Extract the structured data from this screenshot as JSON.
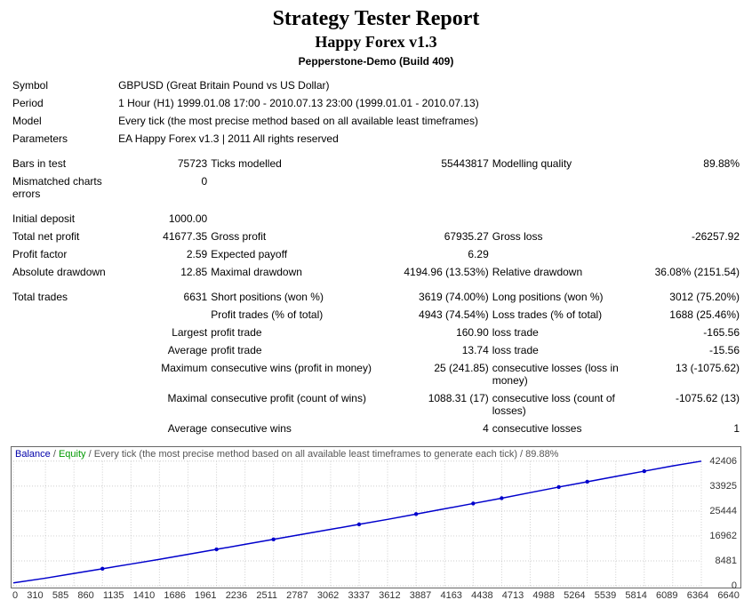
{
  "header": {
    "title": "Strategy Tester Report",
    "subtitle": "Happy Forex v1.3",
    "server": "Pepperstone-Demo (Build 409)"
  },
  "meta": {
    "symbol_label": "Symbol",
    "symbol_value": "GBPUSD (Great Britain Pound vs US Dollar)",
    "period_label": "Period",
    "period_value": "1 Hour (H1) 1999.01.08 17:00 - 2010.07.13 23:00 (1999.01.01 - 2010.07.13)",
    "model_label": "Model",
    "model_value": "Every tick (the most precise method based on all available least timeframes)",
    "parameters_label": "Parameters",
    "parameters_value": "EA Happy Forex v1.3 | 2011 All rights reserved"
  },
  "stats": {
    "bars_in_test_label": "Bars in test",
    "bars_in_test": "75723",
    "ticks_modelled_label": "Ticks modelled",
    "ticks_modelled": "55443817",
    "modelling_quality_label": "Modelling quality",
    "modelling_quality": "89.88%",
    "mismatched_label": "Mismatched charts errors",
    "mismatched": "0",
    "initial_deposit_label": "Initial deposit",
    "initial_deposit": "1000.00",
    "total_net_profit_label": "Total net profit",
    "total_net_profit": "41677.35",
    "gross_profit_label": "Gross profit",
    "gross_profit": "67935.27",
    "gross_loss_label": "Gross loss",
    "gross_loss": "-26257.92",
    "profit_factor_label": "Profit factor",
    "profit_factor": "2.59",
    "expected_payoff_label": "Expected payoff",
    "expected_payoff": "6.29",
    "abs_dd_label": "Absolute drawdown",
    "abs_dd": "12.85",
    "max_dd_label": "Maximal drawdown",
    "max_dd": "4194.96 (13.53%)",
    "rel_dd_label": "Relative drawdown",
    "rel_dd": "36.08% (2151.54)",
    "total_trades_label": "Total trades",
    "total_trades": "6631",
    "short_pos_label": "Short positions (won %)",
    "short_pos": "3619 (74.00%)",
    "long_pos_label": "Long positions (won %)",
    "long_pos": "3012 (75.20%)",
    "profit_trades_label": "Profit trades (% of total)",
    "profit_trades": "4943 (74.54%)",
    "loss_trades_label": "Loss trades (% of total)",
    "loss_trades": "1688 (25.46%)",
    "largest_label": "Largest",
    "largest_profit_label": "profit trade",
    "largest_profit": "160.90",
    "largest_loss_label": "loss trade",
    "largest_loss": "-165.56",
    "average_label": "Average",
    "average_profit_label": "profit trade",
    "average_profit": "13.74",
    "average_loss_label": "loss trade",
    "average_loss": "-15.56",
    "maximum_label": "Maximum",
    "max_cons_wins_label": "consecutive wins (profit in money)",
    "max_cons_wins": "25 (241.85)",
    "max_cons_losses_label": "consecutive losses (loss in money)",
    "max_cons_losses": "13 (-1075.62)",
    "maximal_label": "Maximal",
    "max_cons_profit_label": "consecutive profit (count of wins)",
    "max_cons_profit": "1088.31 (17)",
    "max_cons_loss_label": "consecutive loss (count of losses)",
    "max_cons_loss": "-1075.62 (13)",
    "avg_label": "Average",
    "avg_cons_wins_label": "consecutive wins",
    "avg_cons_wins": "4",
    "avg_cons_losses_label": "consecutive losses",
    "avg_cons_losses": "1"
  },
  "chart": {
    "legend_balance": "Balance",
    "legend_equity": "Equity",
    "legend_rest": " / Every tick (the most precise method based on all available least timeframes to generate each tick) / 89.88%",
    "line_color": "#0000cc",
    "marker_color": "#0000cc",
    "grid_color": "#cccccc",
    "border_color": "#666666",
    "background": "#ffffff",
    "ylim": [
      0,
      42406
    ],
    "yticks": [
      "42406",
      "33925",
      "25444",
      "16962",
      "8481",
      "0"
    ],
    "xticks": [
      "0",
      "310",
      "585",
      "860",
      "1135",
      "1410",
      "1686",
      "1961",
      "2236",
      "2511",
      "2787",
      "3062",
      "3337",
      "3612",
      "3887",
      "4163",
      "4438",
      "4713",
      "4988",
      "5264",
      "5539",
      "5814",
      "6089",
      "6364",
      "6640"
    ],
    "points": [
      {
        "x": 0,
        "y": 1000
      },
      {
        "x": 310,
        "y": 2600
      },
      {
        "x": 585,
        "y": 4200
      },
      {
        "x": 860,
        "y": 5800
      },
      {
        "x": 1135,
        "y": 7400
      },
      {
        "x": 1410,
        "y": 9000
      },
      {
        "x": 1686,
        "y": 10700
      },
      {
        "x": 1961,
        "y": 12400
      },
      {
        "x": 2236,
        "y": 14100
      },
      {
        "x": 2511,
        "y": 15800
      },
      {
        "x": 2787,
        "y": 17500
      },
      {
        "x": 3062,
        "y": 19200
      },
      {
        "x": 3337,
        "y": 20900
      },
      {
        "x": 3612,
        "y": 22600
      },
      {
        "x": 3887,
        "y": 24400
      },
      {
        "x": 4163,
        "y": 26200
      },
      {
        "x": 4438,
        "y": 28000
      },
      {
        "x": 4713,
        "y": 29800
      },
      {
        "x": 4988,
        "y": 31700
      },
      {
        "x": 5264,
        "y": 33600
      },
      {
        "x": 5539,
        "y": 35400
      },
      {
        "x": 5814,
        "y": 37200
      },
      {
        "x": 6089,
        "y": 39000
      },
      {
        "x": 6364,
        "y": 40800
      },
      {
        "x": 6640,
        "y": 42400
      }
    ],
    "markers_x": [
      860,
      1961,
      2511,
      3337,
      3887,
      4438,
      4713,
      5264,
      5539,
      6089
    ]
  }
}
